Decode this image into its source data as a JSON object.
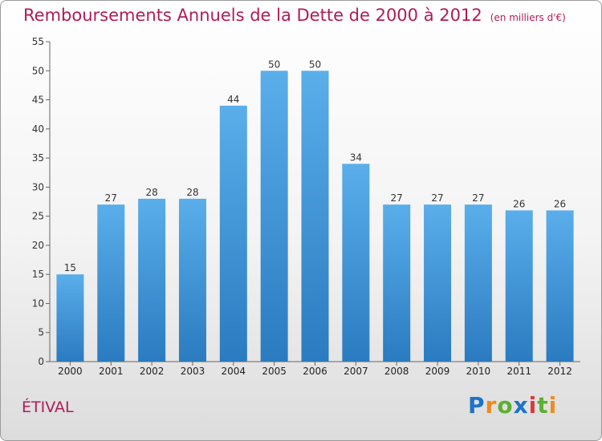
{
  "header": {
    "title": "Remboursements Annuels de la Dette de 2000 à 2012",
    "unit": "(en milliers d'€)"
  },
  "footer": {
    "commune": "ÉTIVAL",
    "logo_text": "Proxiti",
    "logo_colors": [
      "#1e73c8",
      "#f08a1c",
      "#5ab030",
      "#1e73c8",
      "#d83b3b",
      "#5ab030",
      "#f08a1c"
    ]
  },
  "colors": {
    "title": "#b01c5a",
    "bar_light": "#5aaeea",
    "bar_dark": "#2a7bc0"
  },
  "chart_data": {
    "type": "bar",
    "title": "Remboursements Annuels de la Dette de 2000 à 2012",
    "xlabel": "",
    "ylabel": "",
    "categories": [
      "2000",
      "2001",
      "2002",
      "2003",
      "2004",
      "2005",
      "2006",
      "2007",
      "2008",
      "2009",
      "2010",
      "2011",
      "2012"
    ],
    "values": [
      15,
      27,
      28,
      28,
      44,
      50,
      50,
      34,
      27,
      27,
      27,
      26,
      26
    ],
    "ylim": [
      0,
      55
    ],
    "yticks": [
      0,
      5,
      10,
      15,
      20,
      25,
      30,
      35,
      40,
      45,
      50,
      55
    ],
    "grid": false
  }
}
